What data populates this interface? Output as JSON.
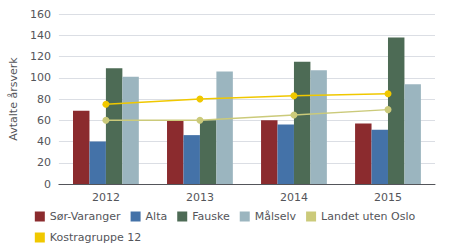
{
  "chart_data": {
    "type": "bar",
    "ylabel": "Avtalte årsverk",
    "categories": [
      "2012",
      "2013",
      "2014",
      "2015"
    ],
    "series": [
      {
        "name": "Sør-Varanger",
        "type": "bar",
        "color": "#8B2B2E",
        "values": [
          69,
          60,
          60,
          57
        ]
      },
      {
        "name": "Alta",
        "type": "bar",
        "color": "#4472A8",
        "values": [
          40,
          46,
          56,
          51
        ]
      },
      {
        "name": "Fauske",
        "type": "bar",
        "color": "#4D6B55",
        "values": [
          109,
          60,
          115,
          138
        ]
      },
      {
        "name": "Målselv",
        "type": "bar",
        "color": "#9BB5BF",
        "values": [
          101,
          106,
          107,
          94
        ]
      },
      {
        "name": "Landet uten Oslo",
        "type": "line",
        "marker": "circle",
        "color": "#CBCA7A",
        "values": [
          60,
          60,
          65,
          70
        ]
      },
      {
        "name": "Kostragruppe 12",
        "type": "line",
        "marker": "circle",
        "color": "#F0C800",
        "values": [
          75,
          80,
          83,
          85
        ]
      }
    ],
    "ylim": [
      0,
      160
    ],
    "yticks": [
      0,
      20,
      40,
      60,
      80,
      100,
      120,
      140,
      160
    ],
    "grid": true,
    "legend": "bottom"
  }
}
